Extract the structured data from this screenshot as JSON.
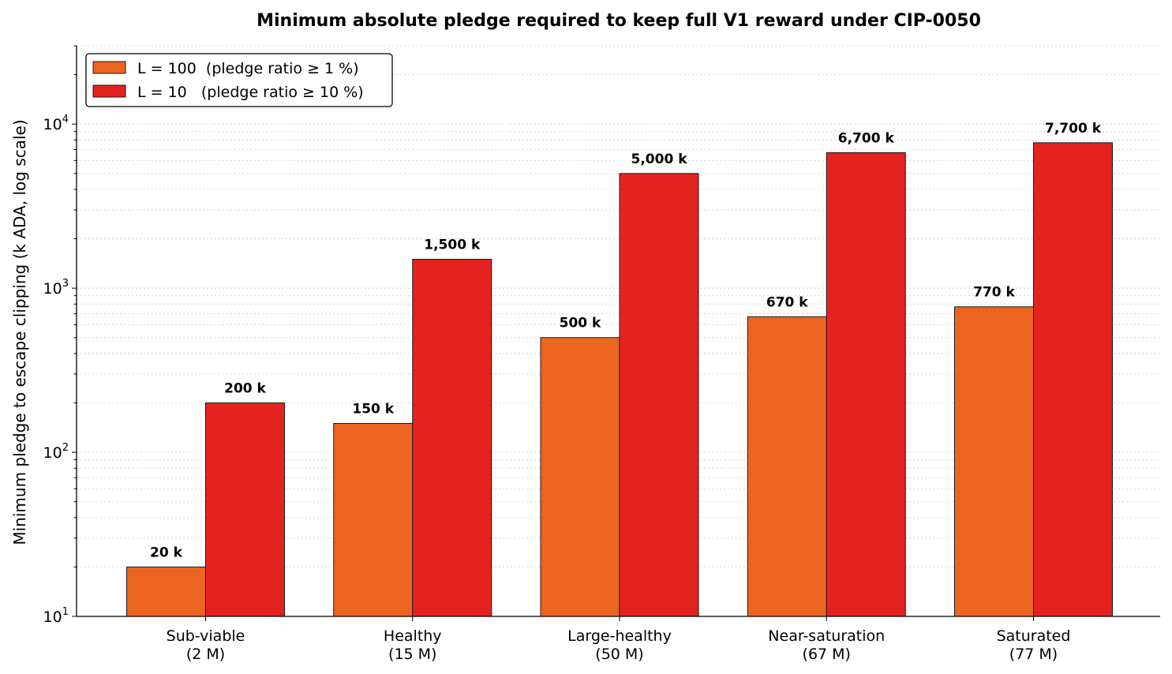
{
  "chart_data": {
    "type": "bar",
    "title": "Minimum absolute pledge required to keep full V1 reward under CIP-0050",
    "xlabel": "",
    "ylabel": "Minimum pledge to escape clipping  (k ADA, log scale)",
    "y_scale": "log",
    "ylim": [
      10,
      30000
    ],
    "y_ticks": [
      {
        "value": 10,
        "base": "10",
        "exp": "1"
      },
      {
        "value": 100,
        "base": "10",
        "exp": "2"
      },
      {
        "value": 1000,
        "base": "10",
        "exp": "3"
      },
      {
        "value": 10000,
        "base": "10",
        "exp": "4"
      }
    ],
    "grid": "horizontal dotted, major and minor",
    "legend_position": "top-left",
    "categories": [
      [
        "Sub-viable",
        "(2 M)"
      ],
      [
        "Healthy",
        "(15 M)"
      ],
      [
        "Large-healthy",
        "(50 M)"
      ],
      [
        "Near-saturation",
        "(67 M)"
      ],
      [
        "Saturated",
        "(77 M)"
      ]
    ],
    "series": [
      {
        "name": "L = 100  (pledge ratio ≥ 1 %)",
        "color": "#EC6520",
        "values": [
          20,
          150,
          500,
          670,
          770
        ],
        "labels": [
          "20 k",
          "150 k",
          "500 k",
          "670 k",
          "770 k"
        ]
      },
      {
        "name": "L = 10   (pledge ratio ≥ 10 %)",
        "color": "#E42320",
        "values": [
          200,
          1500,
          5000,
          6700,
          7700
        ],
        "labels": [
          "200 k",
          "1,500 k",
          "5,000 k",
          "6,700 k",
          "7,700 k"
        ]
      }
    ]
  }
}
